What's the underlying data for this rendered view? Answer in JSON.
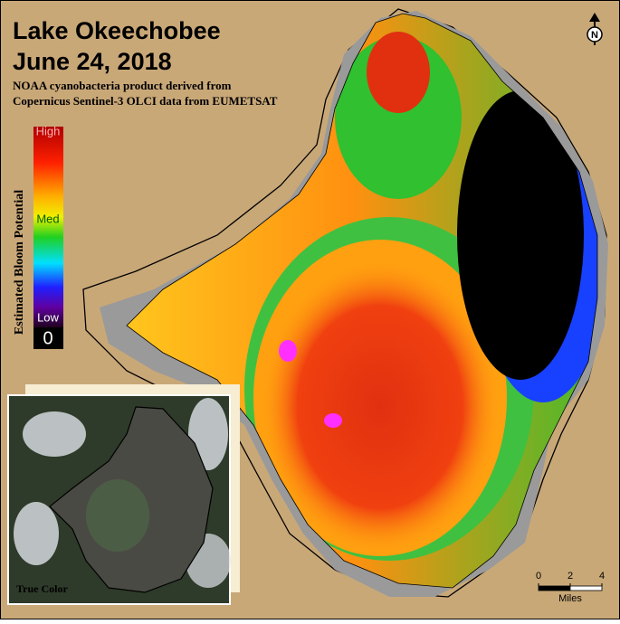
{
  "title": "Lake Okeechobee",
  "date": "June 24, 2018",
  "subtitle": [
    "NOAA cyanobacteria product derived from",
    "Copernicus Sentinel-3 OLCI data from EUMETSAT"
  ],
  "legend": {
    "title": "Estimated Bloom Potential",
    "labels": [
      "High",
      "Med",
      "Low"
    ],
    "zero": "0"
  },
  "scale_bar": {
    "ticks": [
      0,
      2,
      4
    ],
    "unit": "Miles"
  },
  "inset": {
    "label": "True Color"
  },
  "north_arrow": "N"
}
